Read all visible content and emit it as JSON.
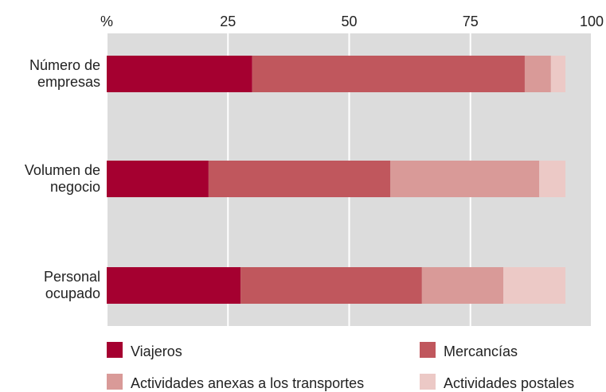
{
  "chart_data": {
    "type": "stacked_barh",
    "categories": [
      "Número de empresas",
      "Volumen de negocio",
      "Personal ocupado"
    ],
    "series": [
      {
        "name": "Viajeros",
        "color": "#a50030",
        "values": [
          30,
          21,
          27.6
        ]
      },
      {
        "name": "Mercancías",
        "color": "#c0575d",
        "values": [
          56.2,
          37.5,
          37.4
        ]
      },
      {
        "name": "Actividades anexas a los transportes",
        "color": "#d99a98",
        "values": [
          5.4,
          30.7,
          16.8
        ]
      },
      {
        "name": "Actividades postales",
        "color": "#ecc9c6",
        "values": [
          3,
          5.4,
          12.8
        ]
      }
    ],
    "xlim": [
      0,
      100
    ],
    "xticks": [
      {
        "value": 0,
        "label": "%"
      },
      25,
      50,
      75,
      100
    ],
    "grid": true
  }
}
